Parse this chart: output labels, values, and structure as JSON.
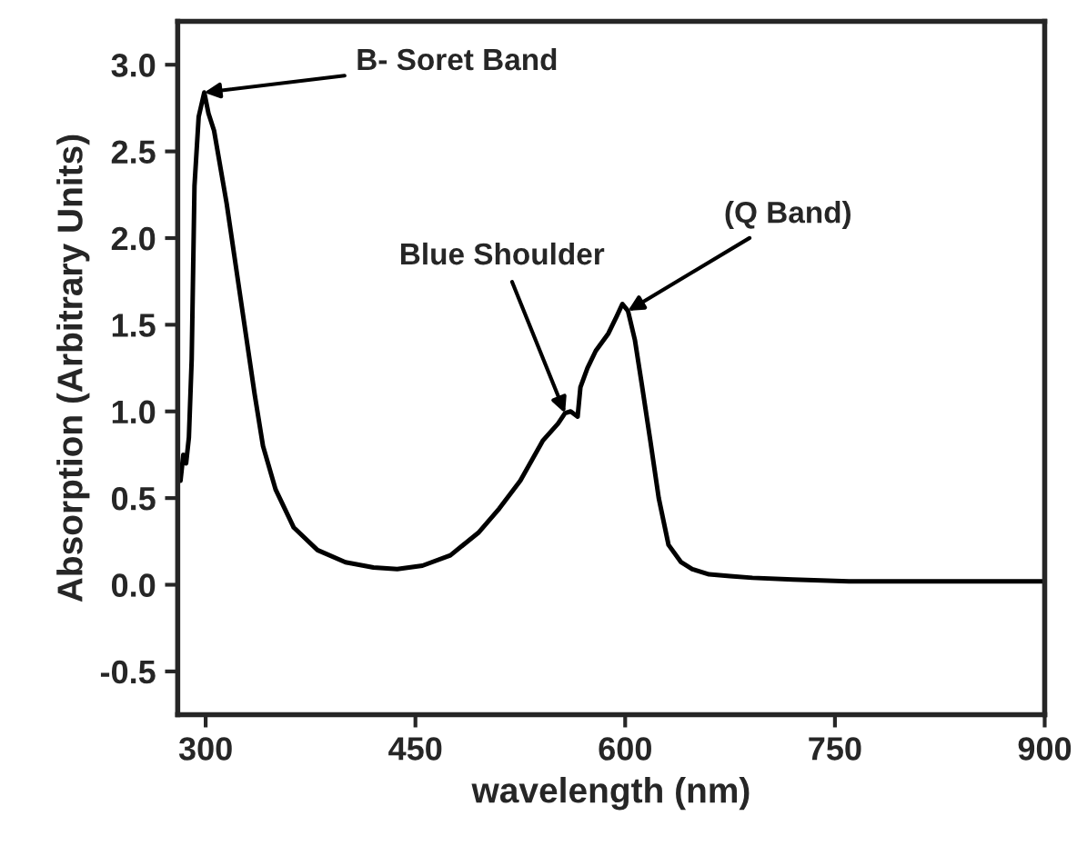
{
  "chart_data": {
    "type": "line",
    "xlabel": "wavelength (nm)",
    "ylabel": "Absorption (Arbitrary Units)",
    "xlim": [
      280,
      900
    ],
    "ylim": [
      -0.75,
      3.25
    ],
    "xticks": [
      300,
      450,
      600,
      750,
      900
    ],
    "yticks": [
      -0.5,
      {
        "value": 0,
        "label": "0.0"
      },
      0.5,
      {
        "value": 1,
        "label": "1.0"
      },
      1.5,
      {
        "value": 2,
        "label": "2.0"
      },
      2.5,
      {
        "value": 3,
        "label": "3.0"
      }
    ],
    "grid": false,
    "legend": false,
    "marker": "none",
    "line_style": "solid",
    "series": [
      {
        "color": "#000000",
        "x": [
          282,
          284,
          286,
          288,
          290,
          292,
          295,
          299,
          302,
          306,
          315,
          325,
          335,
          341,
          350,
          363,
          380,
          400,
          420,
          437,
          455,
          475,
          495,
          510,
          525,
          541,
          552,
          557,
          561,
          566,
          568,
          573,
          579,
          588,
          594,
          598,
          602,
          607,
          612,
          618,
          624,
          631,
          640,
          648,
          660,
          675,
          691,
          720,
          760,
          800,
          850,
          900
        ],
        "values": [
          0.6,
          0.75,
          0.7,
          0.85,
          1.3,
          2.3,
          2.7,
          2.84,
          2.72,
          2.62,
          2.2,
          1.65,
          1.1,
          0.8,
          0.55,
          0.33,
          0.2,
          0.13,
          0.1,
          0.09,
          0.11,
          0.17,
          0.3,
          0.44,
          0.6,
          0.83,
          0.93,
          0.99,
          1.0,
          0.97,
          1.14,
          1.25,
          1.35,
          1.45,
          1.55,
          1.62,
          1.58,
          1.41,
          1.15,
          0.83,
          0.5,
          0.23,
          0.13,
          0.09,
          0.06,
          0.05,
          0.04,
          0.03,
          0.02,
          0.02,
          0.02,
          0.02
        ]
      }
    ],
    "annotations": [
      {
        "text": "B- Soret Band",
        "x": 299,
        "y": 2.84
      },
      {
        "text": "Blue Shoulder",
        "x": 557,
        "y": 0.99
      },
      {
        "text": "(Q Band)",
        "x": 602,
        "y": 1.58
      }
    ]
  }
}
